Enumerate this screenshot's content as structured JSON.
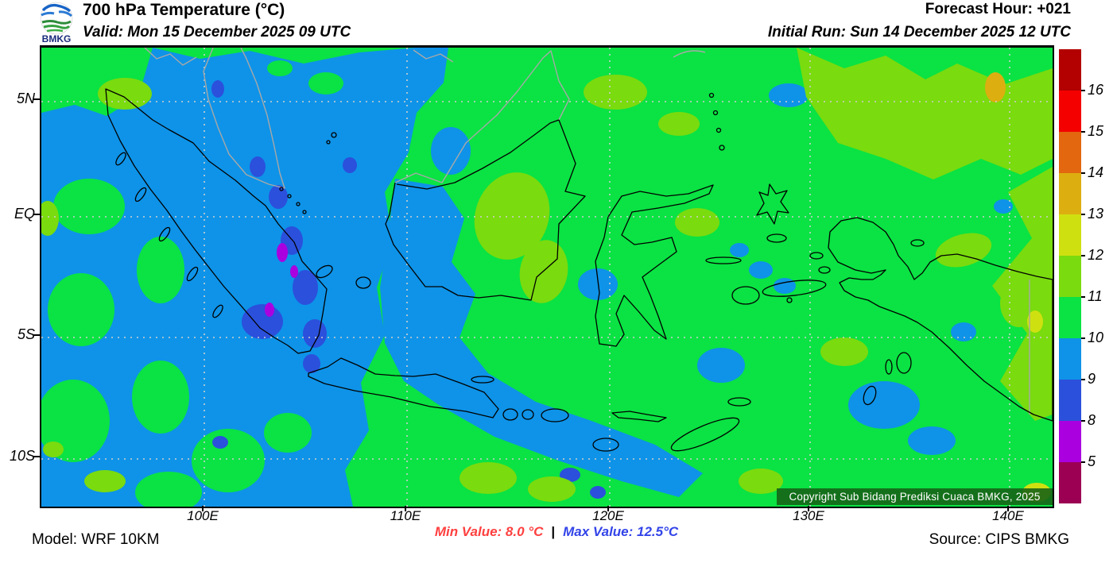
{
  "header": {
    "title": "700 hPa Temperature (°C)",
    "valid": "Valid: Mon 15 December 2025 09 UTC",
    "forecast_hour": "Forecast Hour: +021",
    "initial_run": "Initial Run: Sun 14 December 2025 12 UTC",
    "logo_text": "BMKG"
  },
  "map": {
    "lat_labels": [
      "5N",
      "EQ",
      "5S",
      "10S"
    ],
    "lon_labels": [
      "100E",
      "110E",
      "120E",
      "130E",
      "140E"
    ],
    "copyright": "Copyright Sub Bidang Prediksi Cuaca BMKG, 2025"
  },
  "colorbar": {
    "labels": [
      "16",
      "15",
      "14",
      "13",
      "12",
      "11",
      "10",
      "9",
      "8",
      "5"
    ],
    "colors": [
      "#b30000",
      "#f40000",
      "#e2670e",
      "#ddae10",
      "#cfe010",
      "#7adb0e",
      "#0ae343",
      "#0e93e8",
      "#2b50dc",
      "#aa00e0",
      "#9c0053"
    ]
  },
  "footer": {
    "model": "Model: WRF 10KM",
    "min_label": "Min Value: 8.0 °C",
    "separator": "|",
    "max_label": "Max Value: 12.5°C",
    "source": "Source: CIPS BMKG"
  },
  "chart_data": {
    "type": "heatmap",
    "title": "700 hPa Temperature (°C)",
    "field": "temperature",
    "level": "700 hPa",
    "units": "°C",
    "min_value": 8.0,
    "max_value": 12.5,
    "scale_levels": [
      5,
      8,
      9,
      10,
      11,
      12,
      13,
      14,
      15,
      16
    ],
    "scale_colors": [
      "#9c0053",
      "#aa00e0",
      "#2b50dc",
      "#0e93e8",
      "#0ae343",
      "#7adb0e",
      "#cfe010",
      "#ddae10",
      "#e2670e",
      "#f40000",
      "#b30000"
    ],
    "lat_ticks": [
      "5N",
      "EQ",
      "5S",
      "10S"
    ],
    "lon_ticks": [
      "100E",
      "110E",
      "120E",
      "130E",
      "140E"
    ],
    "grid": true,
    "legend_position": "right",
    "region_summary": "Mostly 10-11°C (green) over Indonesia; 9-10°C (blue) over Sumatra, west Borneo and Java Sea; 8-9°C pockets over the Sumatran highlands; 11-12°C (chartreuse) patches over eastern areas and far north-east; small 12-13°C spot near 138E 5N"
  }
}
